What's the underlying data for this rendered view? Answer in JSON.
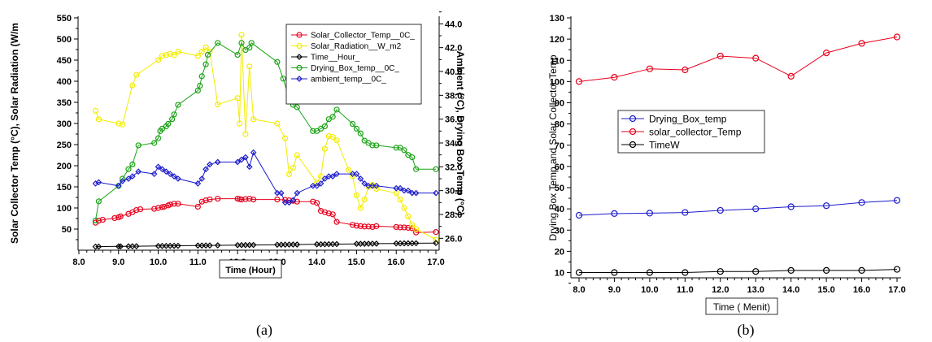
{
  "chart_data": [
    {
      "id": "a",
      "type": "line",
      "caption": "(a)",
      "xlabel": "Time (Hour)",
      "ylabel_left": "Solar Collector Temp (°C), Solar Radiation (W/m",
      "ylabel_right": "Ambient (°C), Drying Box Temp (°C)",
      "xlim": [
        8.0,
        17.0
      ],
      "ylim_left": [
        0,
        550
      ],
      "ylim_right": [
        25,
        44.5
      ],
      "x_ticks": [
        "8.0",
        "9.0",
        "10.0",
        "11.0",
        "12.0",
        "13.0",
        "14.0",
        "15.0",
        "16.0",
        "17.0"
      ],
      "y_ticks_left": [
        "50",
        "100",
        "150",
        "200",
        "250",
        "300",
        "350",
        "400",
        "450",
        "500",
        "550"
      ],
      "y_ticks_right": [
        "26.0",
        "28.0",
        "30.0",
        "32.0",
        "34.0",
        "36.0",
        "38.0",
        "40.0",
        "42.0",
        "44.0"
      ],
      "grid": false,
      "legend_position": "top-right",
      "series": [
        {
          "name": "Solar_Collector_Temp__0C_",
          "axis": "left",
          "color": "#e8001c",
          "marker": "circle",
          "x": [
            8.42,
            8.5,
            8.6,
            8.9,
            9.0,
            9.05,
            9.25,
            9.35,
            9.45,
            9.55,
            9.9,
            10.0,
            10.1,
            10.15,
            10.25,
            10.3,
            10.4,
            10.5,
            11.0,
            11.1,
            11.2,
            11.3,
            11.5,
            12.0,
            12.05,
            12.1,
            12.2,
            12.3,
            12.4,
            13.0,
            13.2,
            13.3,
            13.4,
            13.5,
            13.9,
            14.0,
            14.1,
            14.2,
            14.3,
            14.4,
            14.5,
            14.9,
            15.0,
            15.1,
            15.2,
            15.3,
            15.4,
            15.5,
            16.0,
            16.1,
            16.2,
            16.3,
            16.4,
            16.5,
            17.0
          ],
          "y": [
            65,
            70,
            72,
            76,
            78,
            80,
            86,
            90,
            95,
            97,
            98,
            100,
            102,
            103,
            106,
            108,
            110,
            110,
            103,
            115,
            118,
            120,
            122,
            122,
            121,
            120,
            121,
            122,
            120,
            120,
            119,
            118,
            117,
            115,
            115,
            112,
            93,
            90,
            87,
            85,
            67,
            60,
            58,
            57,
            56,
            56,
            55,
            57,
            55,
            54,
            54,
            53,
            52,
            42,
            43
          ]
        },
        {
          "name": "Solar_Radiation__W_m2",
          "axis": "left",
          "color": "#f2ec00",
          "marker": "circle",
          "x": [
            8.42,
            8.5,
            9.0,
            9.1,
            9.35,
            9.45,
            10.0,
            10.1,
            10.2,
            10.3,
            10.4,
            10.5,
            11.0,
            11.1,
            11.2,
            11.3,
            11.5,
            12.0,
            12.05,
            12.1,
            12.2,
            12.3,
            12.4,
            13.0,
            13.2,
            13.3,
            13.4,
            13.5,
            14.0,
            14.1,
            14.2,
            14.3,
            14.4,
            14.5,
            14.8,
            14.9,
            15.0,
            15.1,
            15.2,
            15.3,
            15.4,
            15.5,
            16.0,
            16.1,
            16.2,
            16.3,
            16.4,
            16.5,
            17.0
          ],
          "y": [
            330,
            310,
            300,
            298,
            390,
            415,
            450,
            460,
            462,
            465,
            462,
            470,
            460,
            470,
            480,
            470,
            345,
            360,
            300,
            510,
            275,
            435,
            310,
            300,
            265,
            180,
            195,
            225,
            160,
            175,
            240,
            270,
            268,
            260,
            190,
            175,
            130,
            100,
            120,
            150,
            155,
            145,
            135,
            120,
            100,
            80,
            60,
            50,
            25
          ]
        },
        {
          "name": "Time__Hour_",
          "axis": "left",
          "color": "#000000",
          "marker": "diamond",
          "x": [
            8.42,
            8.5,
            9.0,
            9.05,
            9.25,
            9.35,
            9.45,
            10.0,
            10.1,
            10.2,
            10.3,
            10.4,
            10.5,
            11.0,
            11.1,
            11.2,
            11.3,
            11.5,
            12.0,
            12.1,
            12.2,
            12.3,
            12.4,
            13.0,
            13.1,
            13.2,
            13.3,
            13.4,
            13.5,
            14.0,
            14.1,
            14.2,
            14.3,
            14.4,
            14.5,
            15.0,
            15.1,
            15.2,
            15.3,
            15.4,
            15.5,
            16.0,
            16.1,
            16.2,
            16.3,
            16.4,
            16.5,
            17.0
          ],
          "y": [
            8.4,
            8.5,
            9.0,
            9.05,
            9.25,
            9.35,
            9.45,
            10.0,
            10.1,
            10.2,
            10.3,
            10.4,
            10.5,
            11.0,
            11.1,
            11.2,
            11.3,
            11.5,
            12.0,
            12.1,
            12.2,
            12.3,
            12.4,
            13.0,
            13.1,
            13.2,
            13.3,
            13.4,
            13.5,
            14.0,
            14.1,
            14.2,
            14.3,
            14.4,
            14.5,
            15.0,
            15.1,
            15.2,
            15.3,
            15.4,
            15.5,
            16.0,
            16.1,
            16.2,
            16.3,
            16.4,
            16.5,
            17.0
          ]
        },
        {
          "name": "Drying_Box_temp__0C_",
          "axis": "right",
          "color": "#1aa315",
          "marker": "circle",
          "x": [
            8.42,
            8.5,
            9.0,
            9.1,
            9.25,
            9.35,
            9.5,
            9.9,
            10.0,
            10.05,
            10.1,
            10.2,
            10.25,
            10.35,
            10.4,
            10.5,
            11.0,
            11.05,
            11.1,
            11.2,
            11.25,
            11.5,
            12.0,
            12.1,
            12.2,
            12.3,
            12.35,
            13.0,
            13.15,
            13.3,
            13.4,
            13.5,
            13.9,
            14.0,
            14.1,
            14.2,
            14.3,
            14.4,
            14.5,
            14.9,
            15.0,
            15.1,
            15.2,
            15.3,
            15.4,
            15.5,
            16.0,
            16.1,
            16.2,
            16.3,
            16.4,
            16.5,
            17.0
          ],
          "y": [
            27.5,
            29.1,
            30.4,
            31.0,
            31.8,
            32.2,
            33.8,
            34.0,
            34.4,
            35.0,
            35.2,
            35.4,
            35.6,
            36.0,
            36.4,
            37.2,
            38.4,
            38.8,
            39.6,
            40.6,
            41.4,
            42.4,
            41.4,
            42.4,
            41.8,
            42.0,
            42.4,
            40.8,
            39.4,
            37.8,
            37.2,
            37.0,
            35.0,
            35.0,
            35.2,
            35.4,
            36.0,
            36.2,
            36.8,
            35.6,
            35.2,
            34.8,
            34.2,
            34.0,
            33.8,
            33.8,
            33.6,
            33.6,
            33.4,
            33.0,
            32.8,
            31.8,
            31.8
          ]
        },
        {
          "name": "ambient_temp__0C_",
          "axis": "right",
          "color": "#1c1ccc",
          "marker": "diamond",
          "x": [
            8.42,
            8.5,
            9.0,
            9.1,
            9.25,
            9.35,
            9.5,
            9.9,
            10.0,
            10.1,
            10.2,
            10.3,
            10.4,
            10.5,
            11.0,
            11.1,
            11.2,
            11.3,
            11.5,
            12.0,
            12.1,
            12.2,
            12.3,
            12.4,
            13.0,
            13.1,
            13.2,
            13.3,
            13.4,
            13.5,
            13.9,
            14.0,
            14.1,
            14.2,
            14.3,
            14.4,
            14.5,
            14.9,
            15.0,
            15.1,
            15.2,
            15.3,
            15.4,
            15.5,
            16.0,
            16.1,
            16.2,
            16.3,
            16.4,
            16.5,
            17.0
          ],
          "y": [
            30.6,
            30.7,
            30.4,
            30.8,
            31.0,
            31.2,
            31.6,
            31.4,
            32.0,
            31.8,
            31.6,
            31.4,
            31.2,
            31.0,
            30.6,
            31.0,
            31.8,
            32.2,
            32.4,
            32.4,
            32.6,
            32.8,
            32.0,
            33.2,
            29.8,
            29.8,
            29.0,
            29.0,
            29.2,
            29.8,
            30.4,
            30.4,
            30.6,
            31.0,
            31.2,
            31.2,
            31.4,
            31.4,
            31.4,
            31.0,
            30.6,
            30.4,
            30.4,
            30.4,
            30.2,
            30.2,
            30.0,
            30.0,
            29.8,
            29.8,
            29.8
          ]
        }
      ]
    },
    {
      "id": "b",
      "type": "line",
      "caption": "(b)",
      "xlabel": "Time ( Menit)",
      "ylabel": "Drying Box Temp and Solar Collector Temp",
      "xlim": [
        8.0,
        17.0
      ],
      "ylim": [
        5,
        130
      ],
      "x_ticks": [
        "8.0",
        "9.0",
        "10.0",
        "11.0",
        "12.0",
        "13.0",
        "14.0",
        "15.0",
        "16.0",
        "17.0"
      ],
      "y_ticks": [
        "10",
        "20",
        "30",
        "40",
        "50",
        "60",
        "70",
        "80",
        "90",
        "100",
        "110",
        "120",
        "130"
      ],
      "grid": false,
      "legend_position": "center-left",
      "series": [
        {
          "name": "Drying_Box_temp",
          "color": "#1c1ccc",
          "marker": "circle",
          "x": [
            8,
            9,
            10,
            11,
            12,
            13,
            14,
            15,
            16,
            17
          ],
          "y": [
            37,
            37.8,
            38,
            38.3,
            39.3,
            40,
            41,
            41.5,
            43,
            44
          ]
        },
        {
          "name": "solar_collector_Temp",
          "color": "#e8001c",
          "marker": "circle",
          "x": [
            8,
            9,
            10,
            11,
            12,
            13,
            14,
            15,
            16,
            17
          ],
          "y": [
            100,
            102,
            106,
            105.5,
            112,
            111,
            102.5,
            113.5,
            118,
            121
          ]
        },
        {
          "name": "TimeW",
          "color": "#000000",
          "marker": "circle",
          "x": [
            8,
            9,
            10,
            11,
            12,
            13,
            14,
            15,
            16,
            17
          ],
          "y": [
            10,
            10,
            10,
            10,
            10.5,
            10.5,
            11,
            11,
            11,
            11.5
          ]
        }
      ]
    }
  ]
}
